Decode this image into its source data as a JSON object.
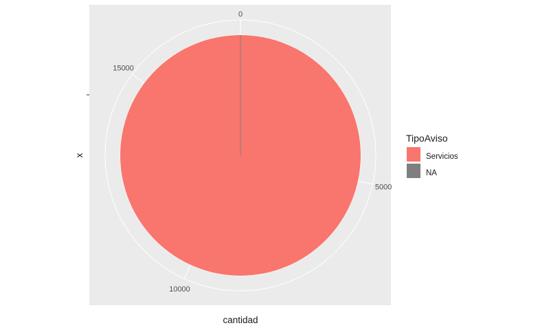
{
  "chart_data": {
    "type": "pie",
    "coord": "polar",
    "xlabel": "x",
    "ylabel": "cantidad",
    "theta_ticks": [
      "0",
      "5000",
      "10000",
      "15000"
    ],
    "theta_tick_values": [
      0,
      5000,
      10000,
      15000
    ],
    "theta_max": 17600,
    "legend": {
      "title": "TipoAviso",
      "position": "right",
      "entries": [
        {
          "label": "Servicios",
          "color": "#F8766D"
        },
        {
          "label": "NA",
          "color": "#7F7F7F"
        }
      ]
    },
    "slices": [
      {
        "category": "Servicios",
        "value": 17600,
        "color": "#F8766D"
      },
      {
        "category": "NA",
        "value": 5,
        "color": "#7F7F7F"
      }
    ],
    "panel_background": "#EBEBEB",
    "grid_color": "#FFFFFF"
  }
}
